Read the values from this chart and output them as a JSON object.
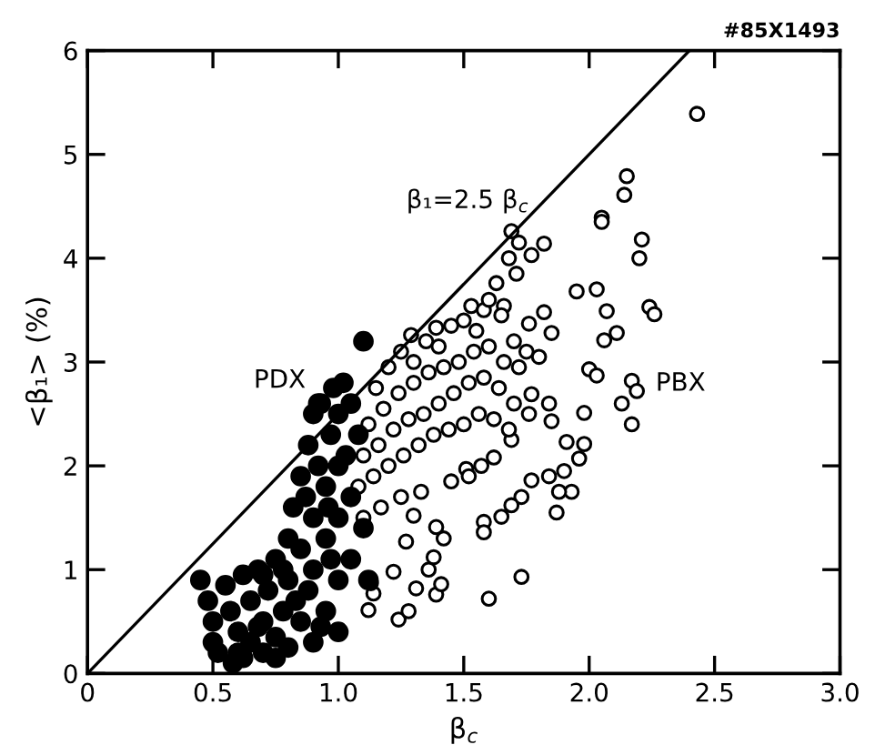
{
  "chart_data": {
    "type": "scatter",
    "xlabel": "β$_{c}$",
    "ylabel": "<β₁> (%)",
    "xlim": [
      0,
      3.0
    ],
    "ylim": [
      0,
      6
    ],
    "xticks": [
      0,
      0.5,
      {
        "value": 1.0,
        "label": "1.0"
      },
      1.5,
      {
        "value": 2.0,
        "label": "2.0"
      },
      2.5,
      {
        "value": 3.0,
        "label": "3.0"
      }
    ],
    "yticks": [
      0,
      1,
      2,
      3,
      4,
      5,
      6
    ],
    "grid": false,
    "marker": "circle",
    "annotations": [
      "#85X1493",
      {
        "text": "β₁=2.5 β$_{c}$",
        "x": 1.82,
        "y": 4.55
      }
    ],
    "series": [
      {
        "type": "line",
        "color": "#000000",
        "x": [
          0,
          2.4
        ],
        "values": [
          0,
          6
        ],
        "marker": "none"
      },
      {
        "name": "PDX",
        "color": "#000000",
        "x": [
          0.45,
          0.48,
          0.5,
          0.5,
          0.52,
          0.55,
          0.57,
          0.6,
          0.6,
          0.62,
          0.65,
          0.65,
          0.68,
          0.7,
          0.7,
          0.72,
          0.75,
          0.75,
          0.78,
          0.8,
          0.8,
          0.8,
          0.82,
          0.85,
          0.85,
          0.85,
          0.88,
          0.88,
          0.9,
          0.9,
          0.9,
          0.9,
          0.92,
          0.93,
          0.95,
          0.95,
          0.95,
          0.97,
          0.98,
          1.0,
          1.0,
          1.0,
          1.0,
          1.0,
          1.02,
          1.05,
          1.05,
          1.05,
          1.08,
          1.1,
          1.1,
          1.12,
          0.97,
          0.87,
          0.92,
          0.7,
          0.58,
          0.62,
          0.75,
          0.83,
          0.93,
          1.03,
          0.96,
          0.78,
          0.68
        ],
        "values": [
          0.9,
          0.7,
          0.5,
          0.3,
          0.2,
          0.85,
          0.6,
          0.4,
          0.2,
          0.95,
          0.7,
          0.3,
          1.0,
          0.5,
          0.2,
          0.8,
          1.1,
          0.35,
          0.6,
          1.3,
          0.9,
          0.25,
          1.6,
          1.9,
          1.2,
          0.5,
          2.2,
          0.8,
          2.5,
          1.5,
          1.0,
          0.3,
          2.0,
          2.6,
          1.8,
          1.3,
          0.6,
          2.3,
          2.75,
          2.5,
          2.0,
          1.5,
          0.9,
          0.4,
          2.8,
          2.6,
          1.7,
          1.1,
          2.3,
          3.2,
          1.4,
          0.9,
          1.1,
          1.7,
          2.6,
          0.95,
          0.1,
          0.15,
          0.15,
          0.7,
          0.45,
          2.1,
          1.6,
          1.0,
          0.45
        ]
      },
      {
        "name": "PBX",
        "color": "#ffffff",
        "x": [
          2.43,
          2.15,
          2.14,
          2.05,
          2.05,
          2.21,
          2.2,
          1.95,
          2.03,
          2.07,
          2.24,
          2.26,
          2.11,
          2.06,
          2.0,
          2.03,
          2.17,
          2.19,
          2.13,
          2.17,
          1.98,
          1.98,
          1.91,
          1.96,
          1.93,
          1.88,
          1.84,
          1.77,
          1.73,
          1.69,
          1.65,
          1.58,
          1.58,
          1.73,
          1.6,
          1.24,
          1.28,
          1.39,
          1.41,
          1.36,
          1.31,
          1.12,
          1.14,
          1.13,
          1.22,
          1.38,
          1.42,
          1.39,
          1.3,
          1.27,
          1.69,
          1.72,
          1.82,
          1.77,
          1.68,
          1.71,
          1.63,
          1.53,
          1.58,
          1.66,
          1.82,
          1.85,
          1.76,
          1.39,
          1.29,
          1.84,
          1.77,
          1.85,
          1.69,
          1.62,
          1.51,
          1.15,
          1.2,
          1.25,
          1.3,
          1.35,
          1.4,
          1.45,
          1.5,
          1.55,
          1.6,
          1.65,
          1.7,
          1.75,
          1.8,
          1.12,
          1.18,
          1.24,
          1.3,
          1.36,
          1.42,
          1.48,
          1.54,
          1.6,
          1.66,
          1.72,
          1.1,
          1.16,
          1.22,
          1.28,
          1.34,
          1.4,
          1.46,
          1.52,
          1.58,
          1.64,
          1.7,
          1.76,
          1.08,
          1.14,
          1.2,
          1.26,
          1.32,
          1.38,
          1.44,
          1.5,
          1.56,
          1.62,
          1.68,
          1.1,
          1.17,
          1.25,
          1.33,
          1.45,
          1.52,
          1.57,
          1.9,
          1.87
        ],
        "values": [
          5.39,
          4.79,
          4.61,
          4.39,
          4.35,
          4.18,
          4.0,
          3.68,
          3.7,
          3.49,
          3.53,
          3.46,
          3.28,
          3.21,
          2.93,
          2.87,
          2.82,
          2.72,
          2.6,
          2.4,
          2.51,
          2.21,
          2.23,
          2.07,
          1.75,
          1.75,
          1.9,
          1.86,
          1.7,
          1.62,
          1.51,
          1.46,
          1.36,
          0.93,
          0.72,
          0.52,
          0.6,
          0.76,
          0.86,
          1.0,
          0.82,
          0.61,
          0.77,
          0.87,
          0.98,
          1.12,
          1.3,
          1.41,
          1.52,
          1.27,
          4.26,
          4.15,
          4.14,
          4.03,
          4.0,
          3.85,
          3.76,
          3.54,
          3.5,
          3.54,
          3.48,
          3.28,
          3.37,
          3.33,
          3.26,
          2.6,
          2.69,
          2.43,
          2.25,
          2.08,
          1.97,
          2.75,
          2.95,
          3.1,
          3.0,
          3.2,
          3.15,
          3.35,
          3.4,
          3.3,
          3.6,
          3.45,
          3.2,
          3.1,
          3.05,
          2.4,
          2.55,
          2.7,
          2.8,
          2.9,
          2.95,
          3.0,
          3.1,
          3.15,
          3.0,
          2.95,
          2.1,
          2.2,
          2.35,
          2.45,
          2.5,
          2.6,
          2.7,
          2.8,
          2.85,
          2.75,
          2.6,
          2.5,
          1.8,
          1.9,
          2.0,
          2.1,
          2.2,
          2.3,
          2.35,
          2.4,
          2.5,
          2.45,
          2.35,
          1.5,
          1.6,
          1.7,
          1.75,
          1.85,
          1.9,
          2.0,
          1.95,
          1.55
        ]
      }
    ]
  }
}
